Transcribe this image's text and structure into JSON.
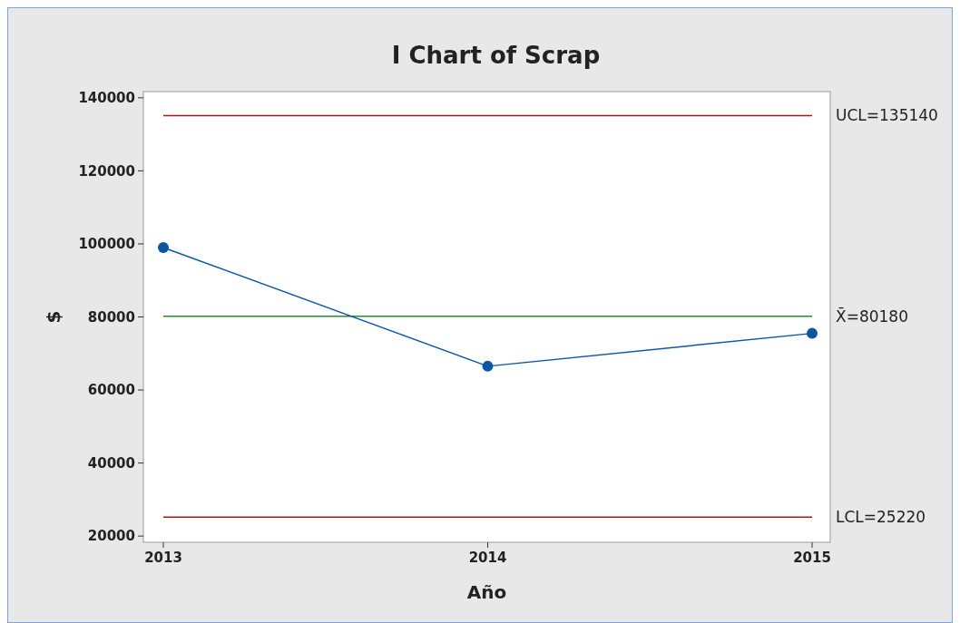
{
  "chart_data": {
    "type": "line",
    "title": "I Chart of Scrap",
    "xlabel": "Año",
    "ylabel": "$",
    "categories": [
      "2013",
      "2014",
      "2015"
    ],
    "series": [
      {
        "color": "#0a55a5",
        "values": [
          99000,
          66500,
          75500
        ]
      }
    ],
    "marker": "circle",
    "line_style": "solid",
    "grid": false,
    "ylim": [
      18300,
      141700
    ],
    "yticks": [
      20000,
      40000,
      60000,
      80000,
      100000,
      120000,
      140000
    ],
    "ref_lines": [
      {
        "axis": "y",
        "value": 135140,
        "label": "UCL=135140",
        "color": "#a01c1c"
      },
      {
        "axis": "y",
        "value": 80180,
        "label": "X̄=80180",
        "color": "#2a8a2a"
      },
      {
        "axis": "y",
        "value": 25220,
        "label": "LCL=25220",
        "color": "#a01c1c"
      }
    ]
  }
}
